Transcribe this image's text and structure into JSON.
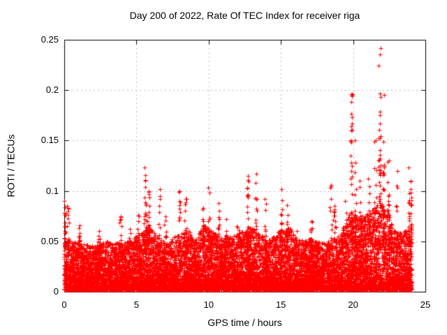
{
  "chart_data": {
    "type": "scatter",
    "title": "Day 200 of 2022, Rate Of TEC Index for receiver riga",
    "xlabel": "GPS time / hours",
    "ylabel": "ROTI / TECUs",
    "series_name": "ROTI",
    "xlim": [
      0,
      25
    ],
    "ylim": [
      0,
      0.25
    ],
    "xticks": [
      0,
      5,
      10,
      15,
      20,
      25
    ],
    "xtick_labels": [
      "0",
      "5",
      "10",
      "15",
      "20",
      "25"
    ],
    "yticks": [
      0,
      0.05,
      0.1,
      0.15,
      0.2,
      0.25
    ],
    "ytick_labels": [
      "0",
      "0.05",
      "0.1",
      "0.15",
      "0.2",
      "0.25"
    ],
    "grid": {
      "show": true,
      "color": "#b8b8b8",
      "dash": [
        2,
        4
      ]
    },
    "legend": "none",
    "background": "#ffffff",
    "border_color": "#000000",
    "marker": {
      "symbol": "+",
      "color": "#ff0000",
      "size": 7
    },
    "seed": 20220200,
    "points": {
      "x_min": 0,
      "x_max": 24.05,
      "n_baseline": 12000,
      "y_floor": 0.002,
      "spike_base": 0.045,
      "band_envelope": [
        [
          0,
          0.052
        ],
        [
          0.5,
          0.05
        ],
        [
          1,
          0.048
        ],
        [
          2,
          0.046
        ],
        [
          3,
          0.05
        ],
        [
          4,
          0.048
        ],
        [
          5,
          0.055
        ],
        [
          5.8,
          0.065
        ],
        [
          6.5,
          0.055
        ],
        [
          7,
          0.048
        ],
        [
          8,
          0.058
        ],
        [
          8.6,
          0.062
        ],
        [
          9,
          0.05
        ],
        [
          9.7,
          0.068
        ],
        [
          10.2,
          0.06
        ],
        [
          11,
          0.052
        ],
        [
          12,
          0.058
        ],
        [
          13,
          0.065
        ],
        [
          13.5,
          0.06
        ],
        [
          14,
          0.05
        ],
        [
          15,
          0.062
        ],
        [
          15.6,
          0.065
        ],
        [
          16,
          0.052
        ],
        [
          17,
          0.052
        ],
        [
          18,
          0.048
        ],
        [
          19,
          0.055
        ],
        [
          19.8,
          0.08
        ],
        [
          20.5,
          0.075
        ],
        [
          21,
          0.078
        ],
        [
          21.8,
          0.09
        ],
        [
          22.3,
          0.085
        ],
        [
          22.7,
          0.065
        ],
        [
          23,
          0.058
        ],
        [
          23.5,
          0.06
        ],
        [
          24.05,
          0.068
        ]
      ],
      "spikes_x_peak_n": [
        [
          0.05,
          0.09,
          18
        ],
        [
          0.25,
          0.085,
          14
        ],
        [
          1.05,
          0.066,
          10
        ],
        [
          2.4,
          0.06,
          8
        ],
        [
          3.9,
          0.075,
          12
        ],
        [
          4.55,
          0.062,
          8
        ],
        [
          5.15,
          0.076,
          12
        ],
        [
          5.62,
          0.123,
          30
        ],
        [
          5.85,
          0.1,
          20
        ],
        [
          6.6,
          0.102,
          14
        ],
        [
          7.0,
          0.075,
          10
        ],
        [
          8.0,
          0.1,
          16
        ],
        [
          8.4,
          0.092,
          22
        ],
        [
          9.6,
          0.083,
          18
        ],
        [
          10.02,
          0.103,
          16
        ],
        [
          10.7,
          0.088,
          14
        ],
        [
          11.2,
          0.072,
          10
        ],
        [
          12.0,
          0.065,
          10
        ],
        [
          12.7,
          0.115,
          26
        ],
        [
          13.3,
          0.117,
          22
        ],
        [
          13.9,
          0.092,
          14
        ],
        [
          15.05,
          0.102,
          20
        ],
        [
          15.45,
          0.086,
          16
        ],
        [
          16.1,
          0.06,
          8
        ],
        [
          17.1,
          0.07,
          12
        ],
        [
          18.45,
          0.106,
          10
        ],
        [
          18.7,
          0.085,
          12
        ],
        [
          19.5,
          0.09,
          14
        ],
        [
          19.9,
          0.196,
          40
        ],
        [
          20.15,
          0.15,
          18
        ],
        [
          20.5,
          0.11,
          16
        ],
        [
          21.1,
          0.112,
          18
        ],
        [
          21.55,
          0.15,
          20
        ],
        [
          21.85,
          0.242,
          45
        ],
        [
          22.1,
          0.195,
          30
        ],
        [
          22.45,
          0.13,
          18
        ],
        [
          23.0,
          0.12,
          12
        ],
        [
          23.9,
          0.123,
          16
        ],
        [
          24.0,
          0.11,
          12
        ]
      ]
    }
  }
}
